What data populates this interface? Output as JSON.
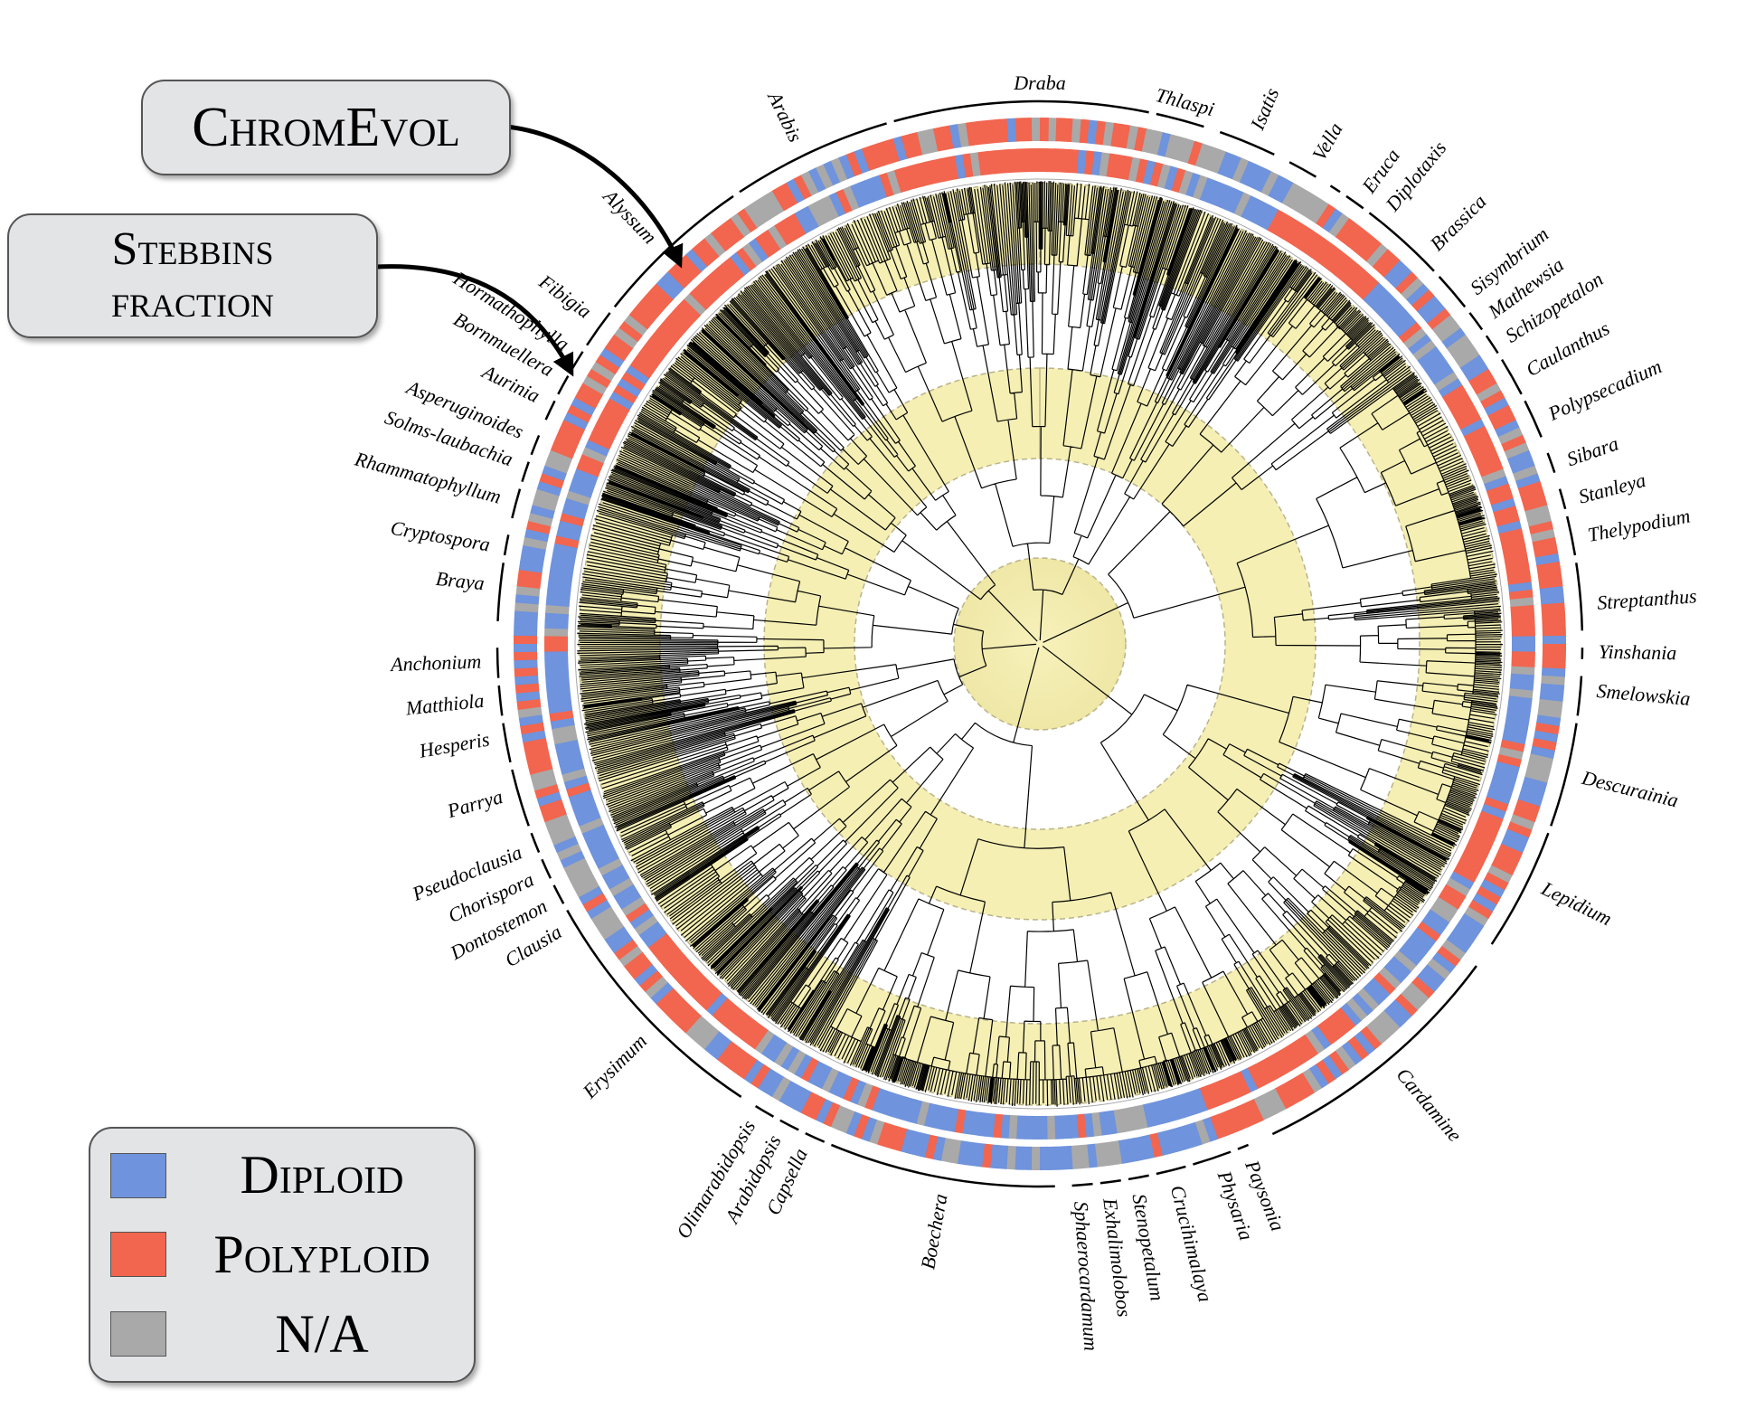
{
  "colors": {
    "diploid": "#6f93dc",
    "polyploid": "#f2654e",
    "na": "#a9a9a9",
    "band": "#f6f0b6",
    "branch": "#000000"
  },
  "callouts": {
    "chromevol": "ChromEvol",
    "stebbins_line1": "Stebbins",
    "stebbins_line2": "fraction"
  },
  "legend": {
    "diploid": "Diploid",
    "polyploid": "Polyploid",
    "na": "N/A"
  },
  "genera": [
    {
      "name": "Draba",
      "angle": 0,
      "from": -16,
      "to": 12
    },
    {
      "name": "Thlaspi",
      "angle": 15,
      "from": 12,
      "to": 18
    },
    {
      "name": "Isatis",
      "angle": 23,
      "from": 19,
      "to": 26
    },
    {
      "name": "Vella",
      "angle": 30,
      "from": 27,
      "to": 31
    },
    {
      "name": "Eruca",
      "angle": 36,
      "from": 32,
      "to": 34
    },
    {
      "name": "Diplotaxis",
      "angle": 39,
      "from": 34,
      "to": 37
    },
    {
      "name": "Brassica",
      "angle": 45,
      "from": 37,
      "to": 47
    },
    {
      "name": "Sisymbrium",
      "angle": 51,
      "from": 47,
      "to": 52
    },
    {
      "name": "Mathewsia",
      "angle": 54,
      "from": 52,
      "to": 55
    },
    {
      "name": "Schizopetalon",
      "angle": 57,
      "from": 55,
      "to": 58
    },
    {
      "name": "Caulanthus",
      "angle": 61,
      "from": 58,
      "to": 63
    },
    {
      "name": "Polypsecadium",
      "angle": 66,
      "from": 63,
      "to": 68
    },
    {
      "name": "Sibara",
      "angle": 71,
      "from": 69,
      "to": 72
    },
    {
      "name": "Stanleya",
      "angle": 75,
      "from": 73,
      "to": 76
    },
    {
      "name": "Thelypodium",
      "angle": 79,
      "from": 76,
      "to": 81
    },
    {
      "name": "Streptanthus",
      "angle": 86,
      "from": 81,
      "to": 89
    },
    {
      "name": "Yinshania",
      "angle": 91,
      "from": 90,
      "to": 92
    },
    {
      "name": "Smelowskia",
      "angle": 95,
      "from": 93,
      "to": 98
    },
    {
      "name": "Descurainia",
      "angle": 104,
      "from": 98,
      "to": 110
    },
    {
      "name": "Lepidium",
      "angle": 116,
      "from": 110,
      "to": 124
    },
    {
      "name": "Cardamine",
      "angle": 140,
      "from": 126,
      "to": 155
    },
    {
      "name": "Paysonia",
      "angle": 158,
      "from": 157,
      "to": 159
    },
    {
      "name": "Physaria",
      "angle": 161,
      "from": 159,
      "to": 164
    },
    {
      "name": "Crucihimalaya",
      "angle": 166,
      "from": 164,
      "to": 168
    },
    {
      "name": "Stenopetalum",
      "angle": 170,
      "from": 168,
      "to": 171
    },
    {
      "name": "Exhalimolobos",
      "angle": 173,
      "from": 171,
      "to": 174
    },
    {
      "name": "Sphaerocardamum",
      "angle": 176,
      "from": 174,
      "to": 177
    },
    {
      "name": "Boechera",
      "angle": 190,
      "from": 178,
      "to": 203
    },
    {
      "name": "Capsella",
      "angle": 205,
      "from": 203,
      "to": 206
    },
    {
      "name": "Arabidopsis",
      "angle": 208,
      "from": 206,
      "to": 209
    },
    {
      "name": "Olimarabidopsis",
      "angle": 211,
      "from": 209,
      "to": 212
    },
    {
      "name": "Erysimum",
      "angle": 225,
      "from": 213,
      "to": 240
    },
    {
      "name": "Clausia",
      "angle": 239,
      "from": 239,
      "to": 241
    },
    {
      "name": "Dontostemon",
      "angle": 242,
      "from": 241,
      "to": 244
    },
    {
      "name": "Chorispora",
      "angle": 245,
      "from": 244,
      "to": 247
    },
    {
      "name": "Pseudoclausia",
      "angle": 248,
      "from": 247,
      "to": 250
    },
    {
      "name": "Parrya",
      "angle": 254,
      "from": 250,
      "to": 257
    },
    {
      "name": "Hesperis",
      "angle": 260,
      "from": 257,
      "to": 262
    },
    {
      "name": "Matthiola",
      "angle": 264,
      "from": 262,
      "to": 266
    },
    {
      "name": "Anchonium",
      "angle": 268,
      "from": 266,
      "to": 270
    },
    {
      "name": "Braya",
      "angle": 276,
      "from": 272,
      "to": 279
    },
    {
      "name": "Cryptospora",
      "angle": 280,
      "from": 279,
      "to": 282
    },
    {
      "name": "Rhammatophyllum",
      "angle": 285,
      "from": 283,
      "to": 287
    },
    {
      "name": "Solms-laubachia",
      "angle": 289,
      "from": 287,
      "to": 290
    },
    {
      "name": "Asperuginoides",
      "angle": 292,
      "from": 290,
      "to": 293
    },
    {
      "name": "Aurinia",
      "angle": 296,
      "from": 294,
      "to": 297
    },
    {
      "name": "Bornmuellera",
      "angle": 299,
      "from": 297,
      "to": 300
    },
    {
      "name": "Hormathophylla",
      "angle": 302,
      "from": 300,
      "to": 303
    },
    {
      "name": "Fibigia",
      "angle": 306,
      "from": 303,
      "to": 308
    },
    {
      "name": "Alyssum",
      "angle": 316,
      "from": 308,
      "to": 326
    },
    {
      "name": "Arabis",
      "angle": 334,
      "from": 326,
      "to": 344
    }
  ]
}
